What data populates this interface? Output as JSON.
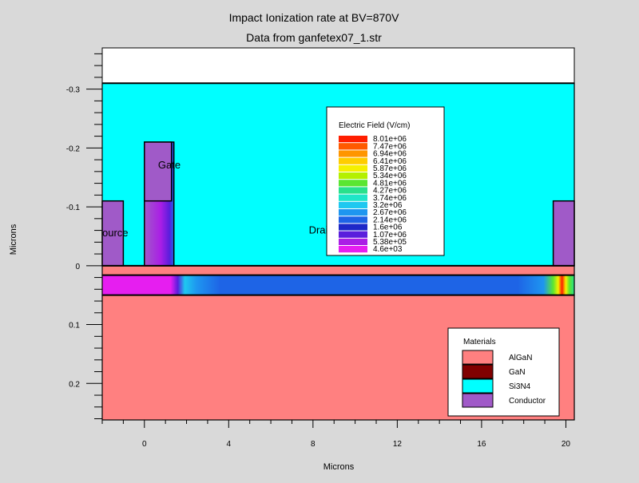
{
  "chart_data": {
    "type": "heatmap",
    "title": "Impact Ionization rate at BV=870V",
    "subtitle": "Data from ganfetex07_1.str",
    "xlabel": "Microns",
    "ylabel": "Microns",
    "xlim": [
      -2,
      20.4
    ],
    "ylim": [
      -0.37,
      0.262
    ],
    "y_inverted": true,
    "x_ticks": [
      0,
      4,
      8,
      12,
      16,
      20
    ],
    "x_tick_labels": [
      "0",
      "4",
      "8",
      "12",
      "16",
      "20"
    ],
    "y_ticks": [
      -0.3,
      -0.2,
      -0.1,
      0,
      0.1,
      0.2
    ],
    "y_tick_labels": [
      "-0.3",
      "-0.2",
      "-0.1",
      "0",
      "0.1",
      "0.2"
    ],
    "regions": [
      {
        "material": "Si3N4",
        "x": [
          -2,
          20.4
        ],
        "y": [
          -0.31,
          0
        ]
      },
      {
        "material": "AlGaN",
        "x": [
          -2,
          20.4
        ],
        "y": [
          0,
          0.016
        ]
      },
      {
        "material": "GaN",
        "x": [
          -2,
          20.4
        ],
        "y": [
          0.016,
          0.05
        ]
      },
      {
        "material": "AlGaN",
        "x": [
          -2,
          20.4
        ],
        "y": [
          0.05,
          0.262
        ]
      },
      {
        "material": "Conductor",
        "label": "Source",
        "x": [
          -2,
          -1
        ],
        "y": [
          -0.11,
          0
        ]
      },
      {
        "material": "Conductor",
        "label": "Gate",
        "x": [
          0,
          1.4
        ],
        "y": [
          -0.21,
          0
        ]
      },
      {
        "material": "Conductor",
        "label": "Drain",
        "x": [
          19.4,
          20.4
        ],
        "y": [
          -0.11,
          0
        ]
      }
    ],
    "electrodes": [
      {
        "label": "ource",
        "x": -2,
        "y": -0.05
      },
      {
        "label": "Gate",
        "x": 0.65,
        "y": -0.165
      },
      {
        "label": "Drain",
        "x": 7.8,
        "y": -0.055
      }
    ],
    "field_legend": {
      "title": "Electric Field (V/cm)",
      "levels": [
        "8.01e+06",
        "7.47e+06",
        "6.94e+06",
        "6.41e+06",
        "5.87e+06",
        "5.34e+06",
        "4.81e+06",
        "4.27e+06",
        "3.74e+06",
        "3.2e+06",
        "2.67e+06",
        "2.14e+06",
        "1.6e+06",
        "1.07e+06",
        "5.38e+05",
        "4.6e+03"
      ],
      "colors": [
        "#ff1e00",
        "#ff5a00",
        "#ff9600",
        "#ffcd00",
        "#f5f000",
        "#b4f000",
        "#5ae632",
        "#28e18c",
        "#1ee6c8",
        "#1ec8f0",
        "#1e96f0",
        "#1e64e6",
        "#1e28c8",
        "#5a1edc",
        "#aa1ee6",
        "#e61ef0"
      ]
    },
    "materials_legend": {
      "title": "Materials",
      "items": [
        {
          "name": "AlGaN",
          "color": "#ff8080"
        },
        {
          "name": "GaN",
          "color": "#800000"
        },
        {
          "name": "Si3N4",
          "color": "#00ffff"
        },
        {
          "name": "Conductor",
          "color": "#a05ac8"
        }
      ]
    },
    "colors": {
      "background": "#d9d9d9",
      "above_device": "#ffffff",
      "channel_base": "#1e64e6",
      "channel_gate_end": "#e61ef0",
      "channel_drain_edge": "#ff1e00"
    }
  }
}
